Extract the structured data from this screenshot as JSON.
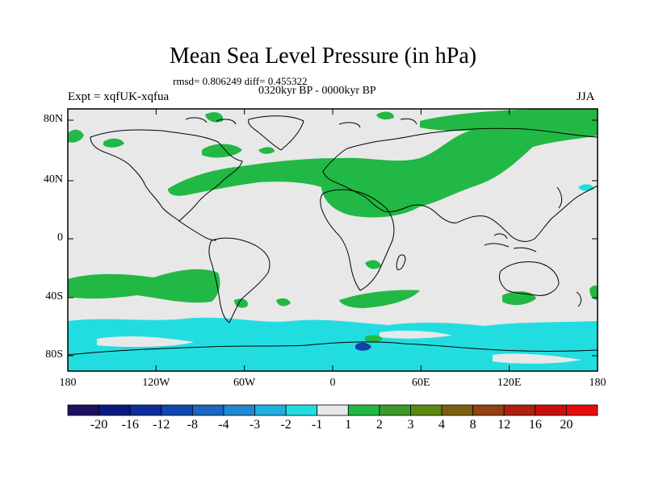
{
  "header": {
    "title": "Mean Sea Level Pressure (in hPa)",
    "stats": "rmsd= 0.806249 diff= 0.455322",
    "period": "0320kyr BP - 0000kyr BP",
    "experiment": "Expt = xqfUK-xqfua",
    "season": "JJA"
  },
  "axes": {
    "lat_ticks": [
      "80N",
      "40N",
      "0",
      "40S",
      "80S"
    ],
    "lon_ticks": [
      "180",
      "120W",
      "60W",
      "0",
      "60E",
      "120E",
      "180"
    ]
  },
  "legend": {
    "labels": [
      "-20",
      "-16",
      "-12",
      "-8",
      "-4",
      "-3",
      "-2",
      "-1",
      "1",
      "2",
      "3",
      "4",
      "8",
      "12",
      "16",
      "20"
    ],
    "colors": [
      "#1e1160",
      "#0a1a80",
      "#0c2e9a",
      "#1048b0",
      "#1a66c0",
      "#2088d0",
      "#20aede",
      "#22dde0",
      "#e8e8e8",
      "#22b845",
      "#3c9a28",
      "#5a8a14",
      "#7a6010",
      "#944010",
      "#ae2010",
      "#cc0e0a",
      "#e80c0c"
    ]
  },
  "map": {
    "ocean_color": "#e8e8e8",
    "positive_color": "#22b845",
    "negative_color": "#22dde0",
    "coastline_color": "#000000"
  }
}
